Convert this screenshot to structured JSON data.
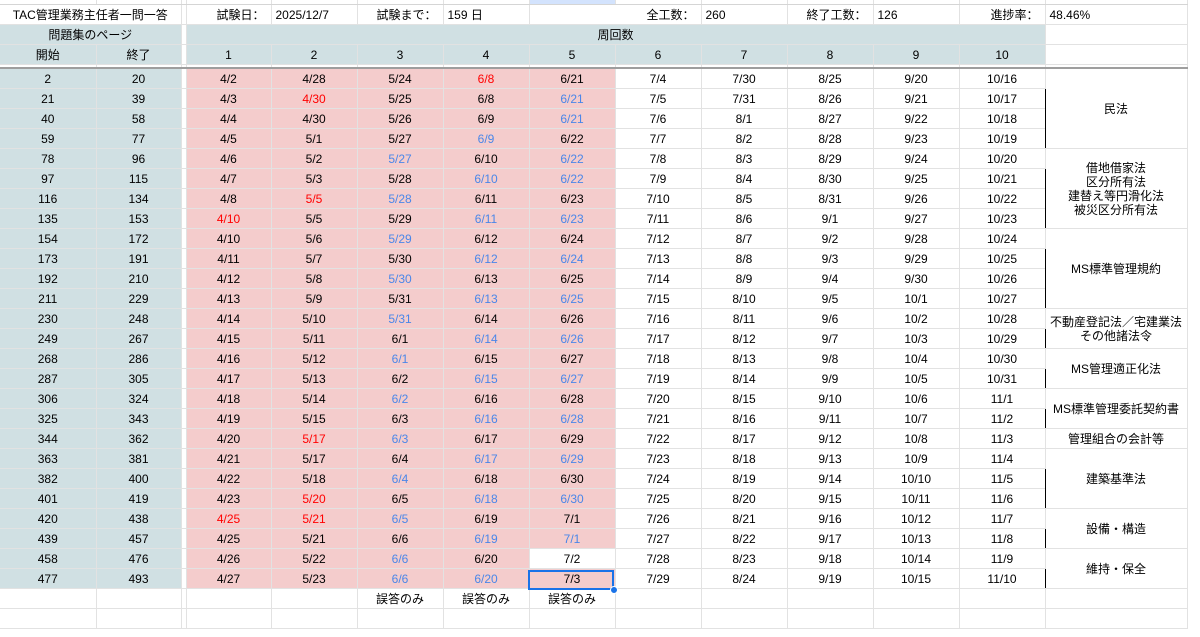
{
  "sheet": {
    "title_cell": "TAC管理業務主任者一問一答",
    "exam_date_label": "試験日：",
    "exam_date": "2025/12/7",
    "until_exam_label": "試験まで：",
    "until_exam": "159 日",
    "total_label": "全工数：",
    "total": "260",
    "done_label": "終了工数：",
    "done": "126",
    "progress_label": "進捗率：",
    "progress": "48.46%"
  },
  "headers": {
    "pages": "問題集のページ",
    "rounds": "周回数",
    "start": "開始",
    "end": "終了",
    "round_numbers": [
      "1",
      "2",
      "3",
      "4",
      "5",
      "6",
      "7",
      "8",
      "9",
      "10"
    ]
  },
  "rows": [
    {
      "s": "2",
      "e": "20",
      "d": [
        "4/2",
        "4/28",
        "5/24",
        "6/8",
        "6/21",
        "7/4",
        "7/30",
        "8/25",
        "9/20",
        "10/16"
      ],
      "c": [
        "",
        "",
        "",
        "red",
        "",
        "",
        "",
        "",
        "",
        ""
      ]
    },
    {
      "s": "21",
      "e": "39",
      "d": [
        "4/3",
        "4/30",
        "5/25",
        "6/8",
        "6/21",
        "7/5",
        "7/31",
        "8/26",
        "9/21",
        "10/17"
      ],
      "c": [
        "",
        "red",
        "",
        "",
        "blue",
        "",
        "",
        "",
        "",
        ""
      ]
    },
    {
      "s": "40",
      "e": "58",
      "d": [
        "4/4",
        "4/30",
        "5/26",
        "6/9",
        "6/21",
        "7/6",
        "8/1",
        "8/27",
        "9/22",
        "10/18"
      ],
      "c": [
        "",
        "",
        "",
        "",
        "blue",
        "",
        "",
        "",
        "",
        ""
      ]
    },
    {
      "s": "59",
      "e": "77",
      "d": [
        "4/5",
        "5/1",
        "5/27",
        "6/9",
        "6/22",
        "7/7",
        "8/2",
        "8/28",
        "9/23",
        "10/19"
      ],
      "c": [
        "",
        "",
        "",
        "blue",
        "",
        "",
        "",
        "",
        "",
        ""
      ]
    },
    {
      "s": "78",
      "e": "96",
      "d": [
        "4/6",
        "5/2",
        "5/27",
        "6/10",
        "6/22",
        "7/8",
        "8/3",
        "8/29",
        "9/24",
        "10/20"
      ],
      "c": [
        "",
        "",
        "blue",
        "",
        "blue",
        "",
        "",
        "",
        "",
        ""
      ]
    },
    {
      "s": "97",
      "e": "115",
      "d": [
        "4/7",
        "5/3",
        "5/28",
        "6/10",
        "6/22",
        "7/9",
        "8/4",
        "8/30",
        "9/25",
        "10/21"
      ],
      "c": [
        "",
        "",
        "",
        "blue",
        "blue",
        "",
        "",
        "",
        "",
        ""
      ]
    },
    {
      "s": "116",
      "e": "134",
      "d": [
        "4/8",
        "5/5",
        "5/28",
        "6/11",
        "6/23",
        "7/10",
        "8/5",
        "8/31",
        "9/26",
        "10/22"
      ],
      "c": [
        "",
        "red",
        "blue",
        "",
        "",
        "",
        "",
        "",
        "",
        ""
      ]
    },
    {
      "s": "135",
      "e": "153",
      "d": [
        "4/10",
        "5/5",
        "5/29",
        "6/11",
        "6/23",
        "7/11",
        "8/6",
        "9/1",
        "9/27",
        "10/23"
      ],
      "c": [
        "red",
        "",
        "",
        "blue",
        "blue",
        "",
        "",
        "",
        "",
        ""
      ]
    },
    {
      "s": "154",
      "e": "172",
      "d": [
        "4/10",
        "5/6",
        "5/29",
        "6/12",
        "6/24",
        "7/12",
        "8/7",
        "9/2",
        "9/28",
        "10/24"
      ],
      "c": [
        "",
        "",
        "blue",
        "",
        "",
        "",
        "",
        "",
        "",
        ""
      ]
    },
    {
      "s": "173",
      "e": "191",
      "d": [
        "4/11",
        "5/7",
        "5/30",
        "6/12",
        "6/24",
        "7/13",
        "8/8",
        "9/3",
        "9/29",
        "10/25"
      ],
      "c": [
        "",
        "",
        "",
        "blue",
        "blue",
        "",
        "",
        "",
        "",
        ""
      ]
    },
    {
      "s": "192",
      "e": "210",
      "d": [
        "4/12",
        "5/8",
        "5/30",
        "6/13",
        "6/25",
        "7/14",
        "8/9",
        "9/4",
        "9/30",
        "10/26"
      ],
      "c": [
        "",
        "",
        "blue",
        "",
        "",
        "",
        "",
        "",
        "",
        ""
      ]
    },
    {
      "s": "211",
      "e": "229",
      "d": [
        "4/13",
        "5/9",
        "5/31",
        "6/13",
        "6/25",
        "7/15",
        "8/10",
        "9/5",
        "10/1",
        "10/27"
      ],
      "c": [
        "",
        "",
        "",
        "blue",
        "blue",
        "",
        "",
        "",
        "",
        ""
      ]
    },
    {
      "s": "230",
      "e": "248",
      "d": [
        "4/14",
        "5/10",
        "5/31",
        "6/14",
        "6/26",
        "7/16",
        "8/11",
        "9/6",
        "10/2",
        "10/28"
      ],
      "c": [
        "",
        "",
        "blue",
        "",
        "",
        "",
        "",
        "",
        "",
        ""
      ]
    },
    {
      "s": "249",
      "e": "267",
      "d": [
        "4/15",
        "5/11",
        "6/1",
        "6/14",
        "6/26",
        "7/17",
        "8/12",
        "9/7",
        "10/3",
        "10/29"
      ],
      "c": [
        "",
        "",
        "",
        "blue",
        "blue",
        "",
        "",
        "",
        "",
        ""
      ]
    },
    {
      "s": "268",
      "e": "286",
      "d": [
        "4/16",
        "5/12",
        "6/1",
        "6/15",
        "6/27",
        "7/18",
        "8/13",
        "9/8",
        "10/4",
        "10/30"
      ],
      "c": [
        "",
        "",
        "blue",
        "",
        "",
        "",
        "",
        "",
        "",
        ""
      ]
    },
    {
      "s": "287",
      "e": "305",
      "d": [
        "4/17",
        "5/13",
        "6/2",
        "6/15",
        "6/27",
        "7/19",
        "8/14",
        "9/9",
        "10/5",
        "10/31"
      ],
      "c": [
        "",
        "",
        "",
        "blue",
        "blue",
        "",
        "",
        "",
        "",
        ""
      ]
    },
    {
      "s": "306",
      "e": "324",
      "d": [
        "4/18",
        "5/14",
        "6/2",
        "6/16",
        "6/28",
        "7/20",
        "8/15",
        "9/10",
        "10/6",
        "11/1"
      ],
      "c": [
        "",
        "",
        "blue",
        "",
        "",
        "",
        "",
        "",
        "",
        ""
      ]
    },
    {
      "s": "325",
      "e": "343",
      "d": [
        "4/19",
        "5/15",
        "6/3",
        "6/16",
        "6/28",
        "7/21",
        "8/16",
        "9/11",
        "10/7",
        "11/2"
      ],
      "c": [
        "",
        "",
        "",
        "blue",
        "blue",
        "",
        "",
        "",
        "",
        ""
      ]
    },
    {
      "s": "344",
      "e": "362",
      "d": [
        "4/20",
        "5/17",
        "6/3",
        "6/17",
        "6/29",
        "7/22",
        "8/17",
        "9/12",
        "10/8",
        "11/3"
      ],
      "c": [
        "",
        "red",
        "blue",
        "",
        "",
        "",
        "",
        "",
        "",
        ""
      ]
    },
    {
      "s": "363",
      "e": "381",
      "d": [
        "4/21",
        "5/17",
        "6/4",
        "6/17",
        "6/29",
        "7/23",
        "8/18",
        "9/13",
        "10/9",
        "11/4"
      ],
      "c": [
        "",
        "",
        "",
        "blue",
        "blue",
        "",
        "",
        "",
        "",
        ""
      ]
    },
    {
      "s": "382",
      "e": "400",
      "d": [
        "4/22",
        "5/18",
        "6/4",
        "6/18",
        "6/30",
        "7/24",
        "8/19",
        "9/14",
        "10/10",
        "11/5"
      ],
      "c": [
        "",
        "",
        "blue",
        "",
        "",
        "",
        "",
        "",
        "",
        ""
      ]
    },
    {
      "s": "401",
      "e": "419",
      "d": [
        "4/23",
        "5/20",
        "6/5",
        "6/18",
        "6/30",
        "7/25",
        "8/20",
        "9/15",
        "10/11",
        "11/6"
      ],
      "c": [
        "",
        "red",
        "",
        "blue",
        "blue",
        "",
        "",
        "",
        "",
        ""
      ]
    },
    {
      "s": "420",
      "e": "438",
      "d": [
        "4/25",
        "5/21",
        "6/5",
        "6/19",
        "7/1",
        "7/26",
        "8/21",
        "9/16",
        "10/12",
        "11/7"
      ],
      "c": [
        "red",
        "red",
        "blue",
        "",
        "",
        "",
        "",
        "",
        "",
        ""
      ]
    },
    {
      "s": "439",
      "e": "457",
      "d": [
        "4/25",
        "5/21",
        "6/6",
        "6/19",
        "7/1",
        "7/27",
        "8/22",
        "9/17",
        "10/13",
        "11/8"
      ],
      "c": [
        "",
        "",
        "",
        "blue",
        "blue",
        "",
        "",
        "",
        "",
        ""
      ]
    },
    {
      "s": "458",
      "e": "476",
      "d": [
        "4/26",
        "5/22",
        "6/6",
        "6/20",
        "7/2",
        "7/28",
        "8/23",
        "9/18",
        "10/14",
        "11/9"
      ],
      "c": [
        "",
        "",
        "blue",
        "",
        "",
        "",
        "",
        "",
        "",
        ""
      ]
    },
    {
      "s": "477",
      "e": "493",
      "d": [
        "4/27",
        "5/23",
        "6/6",
        "6/20",
        "7/3",
        "7/29",
        "8/24",
        "9/19",
        "10/15",
        "11/10"
      ],
      "c": [
        "",
        "",
        "blue",
        "blue",
        "",
        "",
        "",
        "",
        "",
        ""
      ]
    }
  ],
  "categories": [
    {
      "label": "民法",
      "rows": 4
    },
    {
      "label": "借地借家法\n区分所有法\n建替え等円滑化法\n被災区分所有法",
      "rows": 4
    },
    {
      "label": "MS標準管理規約",
      "rows": 4
    },
    {
      "label": "不動産登記法／宅建業法\nその他諸法令",
      "rows": 2
    },
    {
      "label": "MS管理適正化法",
      "rows": 2
    },
    {
      "label": "MS標準管理委託契約書",
      "rows": 2
    },
    {
      "label": "管理組合の会計等",
      "rows": 1
    },
    {
      "label": "建築基準法",
      "rows": 3
    },
    {
      "label": "設備・構造",
      "rows": 2
    },
    {
      "label": "維持・保全",
      "rows": 2
    }
  ],
  "footer": {
    "note": "誤答のみ"
  },
  "colors": {
    "header_bg": "#d0e0e3",
    "done_bg": "#f4cccc",
    "red": "#ff0000",
    "blue": "#4a86e8",
    "selection": "#1a73e8"
  }
}
